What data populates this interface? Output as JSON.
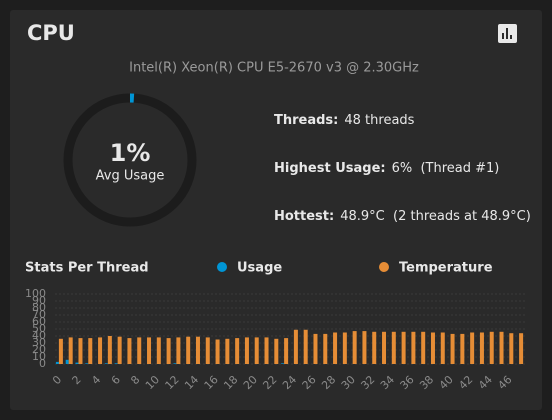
{
  "header": {
    "title": "CPU"
  },
  "cpu_model": "Intel(R) Xeon(R) CPU E5-2670 v3 @ 2.30GHz",
  "gauge": {
    "value": 1,
    "value_label": "1%",
    "label": "Avg Usage"
  },
  "stats": [
    {
      "label": "Threads:",
      "value": "48 threads"
    },
    {
      "label": "Highest Usage:",
      "value": "6%  (Thread #1)"
    },
    {
      "label": "Hottest:",
      "value": "48.9°C  (2 threads at 48.9°C)"
    }
  ],
  "chart_data": {
    "type": "bar",
    "title": "Stats Per Thread",
    "categories": [
      "0",
      null,
      "2",
      null,
      "4",
      null,
      "6",
      null,
      "8",
      null,
      "10",
      null,
      "12",
      null,
      "14",
      null,
      "16",
      null,
      "18",
      null,
      "20",
      null,
      "22",
      null,
      "24",
      null,
      "26",
      null,
      "28",
      null,
      "30",
      null,
      "32",
      null,
      "34",
      null,
      "36",
      null,
      "38",
      null,
      "40",
      null,
      "42",
      null,
      "44",
      null,
      "46",
      null
    ],
    "series": [
      {
        "name": "Usage",
        "color": "#0095d5",
        "values": [
          3,
          6,
          2,
          1,
          0,
          1,
          1,
          0,
          0,
          0,
          0,
          0,
          1,
          0,
          0,
          0,
          0,
          0,
          0,
          0,
          0,
          0,
          0,
          1,
          0,
          0,
          0,
          0,
          0,
          0,
          0,
          0,
          0,
          0,
          0,
          0,
          0,
          0,
          0,
          0,
          0,
          0,
          0,
          0,
          0,
          0,
          0,
          0
        ]
      },
      {
        "name": "Temperature",
        "color": "#e68d36",
        "values": [
          36,
          38,
          37,
          37,
          38,
          40,
          39,
          37,
          38,
          38,
          38,
          37,
          38,
          39,
          39,
          38,
          35,
          36,
          37,
          38,
          38,
          38,
          36,
          37,
          48.9,
          48.9,
          43,
          43,
          45,
          45,
          47,
          47,
          46,
          46,
          46,
          46,
          46,
          46,
          45,
          45,
          43,
          43,
          45,
          45,
          46,
          46,
          44,
          44
        ]
      }
    ],
    "ylim": [
      0,
      100
    ],
    "yticks": [
      0,
      10,
      20,
      30,
      40,
      50,
      60,
      70,
      80,
      90,
      100
    ],
    "grid": true
  }
}
